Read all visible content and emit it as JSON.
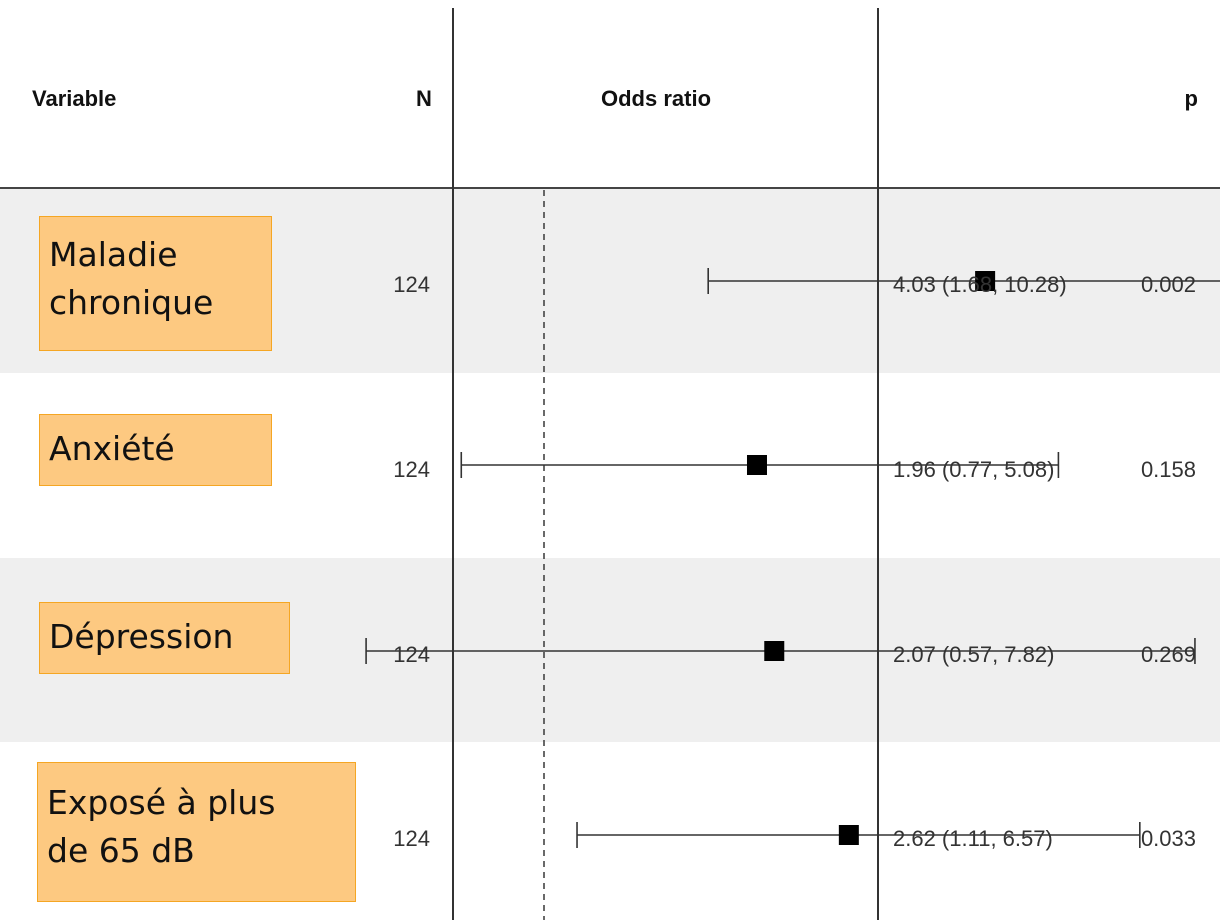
{
  "headers": {
    "variable": "Variable",
    "n": "N",
    "odds_ratio": "Odds ratio",
    "p": "p"
  },
  "colors": {
    "row_band": "#efefef",
    "label_box": "#fdc981",
    "label_border": "#f5a623",
    "marker": "#000000"
  },
  "chart_data": {
    "type": "forest",
    "xlabel": "",
    "reference_line": 1,
    "scale": "log",
    "rows": [
      {
        "label": "Maladie\nchronique",
        "n": "124",
        "or": 4.03,
        "lo": 1.68,
        "hi": 10.28,
        "or_text": "4.03 (1.68, 10.28)",
        "p": "0.002",
        "band": true
      },
      {
        "label": "Anxiété",
        "n": "124",
        "or": 1.96,
        "lo": 0.77,
        "hi": 5.08,
        "or_text": "1.96 (0.77, 5.08)",
        "p": "0.158",
        "band": false
      },
      {
        "label": "Dépression",
        "n": "124",
        "or": 2.07,
        "lo": 0.57,
        "hi": 7.82,
        "or_text": "2.07 (0.57, 7.82)",
        "p": "0.269",
        "band": true
      },
      {
        "label": "Exposé à plus\nde 65 dB",
        "n": "124",
        "or": 2.62,
        "lo": 1.11,
        "hi": 6.57,
        "or_text": "2.62 (1.11, 6.57)",
        "p": "0.033",
        "band": false
      }
    ]
  }
}
